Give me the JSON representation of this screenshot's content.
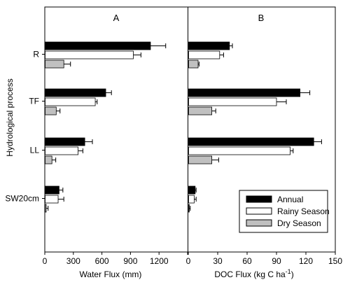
{
  "chart_data": {
    "type": "bar",
    "orientation": "horizontal",
    "ylabel": "Hydrological process",
    "categories": [
      "R",
      "TF",
      "LL",
      "SW20cm"
    ],
    "legend": {
      "placement": "bottom-right",
      "entries": [
        {
          "name": "Annual",
          "color": "#000000"
        },
        {
          "name": "Rainy Season",
          "color": "#ffffff"
        },
        {
          "name": "Dry Season",
          "color": "#c0c0c0"
        }
      ]
    },
    "panels": [
      {
        "label": "A",
        "xlabel": "Water Flux (mm)",
        "xlim": [
          0,
          1500
        ],
        "xticks": [
          0,
          300,
          600,
          900,
          1200,
          1500
        ],
        "xtick_labels": [
          "0",
          "300",
          "600",
          "900",
          "1200",
          ""
        ],
        "series": [
          {
            "name": "Annual",
            "values": [
              1110,
              640,
              420,
              150
            ],
            "errors": [
              160,
              60,
              80,
              40
            ]
          },
          {
            "name": "Rainy Season",
            "values": [
              930,
              530,
              350,
              140
            ],
            "errors": [
              80,
              20,
              50,
              60
            ]
          },
          {
            "name": "Dry Season",
            "values": [
              200,
              120,
              75,
              15
            ],
            "errors": [
              70,
              40,
              40,
              20
            ]
          }
        ]
      },
      {
        "label": "B",
        "xlabel": "DOC Flux (kg C ha",
        "xlabel_sup": "-1",
        "xlabel_end": ")",
        "xlim": [
          0,
          150
        ],
        "xticks": [
          0,
          30,
          60,
          90,
          120,
          150
        ],
        "xtick_labels": [
          "0",
          "30",
          "60",
          "90",
          "120",
          "150"
        ],
        "series": [
          {
            "name": "Annual",
            "values": [
              42,
              114,
              128,
              7
            ],
            "errors": [
              3,
              10,
              8,
              1
            ]
          },
          {
            "name": "Rainy Season",
            "values": [
              32,
              90,
              104,
              6
            ],
            "errors": [
              4,
              10,
              3,
              2
            ]
          },
          {
            "name": "Dry Season",
            "values": [
              10,
              24,
              24,
              1
            ],
            "errors": [
              1,
              4,
              7,
              1
            ]
          }
        ]
      }
    ]
  }
}
